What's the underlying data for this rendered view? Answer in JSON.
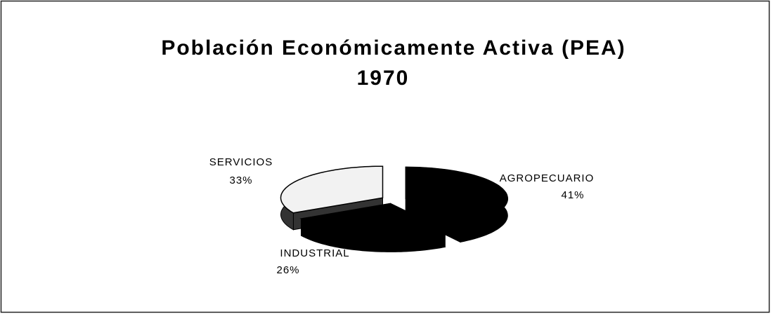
{
  "chart_data": {
    "type": "pie",
    "title": "Población Económicamente Activa (PEA)",
    "subtitle": "1970",
    "categories": [
      "AGROPECUARIO",
      "INDUSTRIAL",
      "SERVICIOS"
    ],
    "values": [
      41,
      26,
      33
    ],
    "value_labels": [
      "41%",
      "26%",
      "33%"
    ],
    "colors": [
      "#000000",
      "#000000",
      "#f2f2f2"
    ]
  }
}
